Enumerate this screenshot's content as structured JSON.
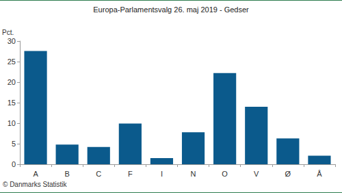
{
  "chart_data": {
    "type": "bar",
    "title": "Europa-Parlamentsvalg 26. maj 2019 - Gedser",
    "y_label": "Pct.",
    "source": "© Danmarks Statistik",
    "categories": [
      "A",
      "B",
      "C",
      "F",
      "I",
      "N",
      "O",
      "V",
      "Ø",
      "Å"
    ],
    "values": [
      27.6,
      4.8,
      4.2,
      9.9,
      1.5,
      7.8,
      22.2,
      14.0,
      6.3,
      2.1
    ],
    "color": "#0b5a8c",
    "ylim": [
      0,
      30
    ],
    "yticks": [
      0,
      5,
      10,
      15,
      20,
      25,
      30
    ],
    "grid": false
  }
}
